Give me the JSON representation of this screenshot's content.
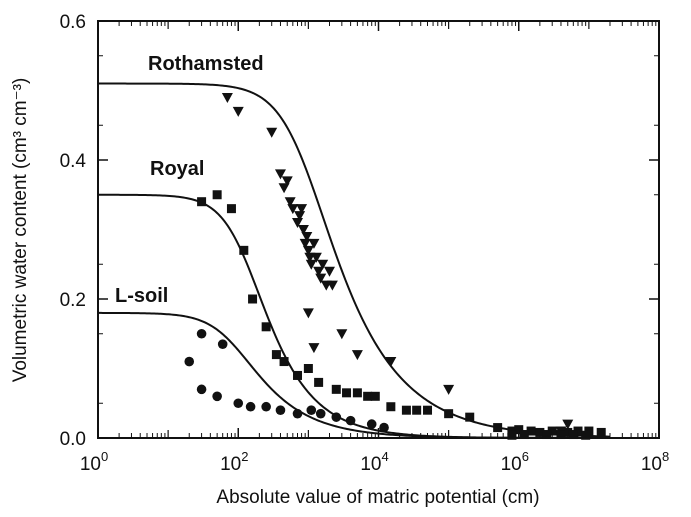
{
  "chart_data": {
    "type": "scatter",
    "title": "",
    "xlabel": "Absolute value of matric potential (cm)",
    "ylabel": "Volumetric water content (cm³ cm⁻³)",
    "xscale": "log",
    "xlim": [
      1,
      100000000
    ],
    "ylim": [
      0,
      0.6
    ],
    "x_ticks": [
      1,
      100,
      10000,
      1000000,
      100000000
    ],
    "x_tick_labels": [
      {
        "base": "10",
        "exp": "0"
      },
      {
        "base": "10",
        "exp": "2"
      },
      {
        "base": "10",
        "exp": "4"
      },
      {
        "base": "10",
        "exp": "6"
      },
      {
        "base": "10",
        "exp": "8"
      }
    ],
    "y_ticks": [
      0,
      0.2,
      0.4,
      0.6
    ],
    "y_tick_labels": [
      "0.0",
      "0.2",
      "0.4",
      "0.6"
    ],
    "grid": false,
    "series": [
      {
        "name": "Rothamsted",
        "marker": "triangle-down",
        "fit": {
          "theta_r": 0.0,
          "theta_s": 0.51,
          "alpha": 0.0012,
          "n": 1.55
        },
        "points": [
          [
            70,
            0.49
          ],
          [
            100,
            0.47
          ],
          [
            300,
            0.44
          ],
          [
            400,
            0.38
          ],
          [
            450,
            0.36
          ],
          [
            500,
            0.37
          ],
          [
            550,
            0.34
          ],
          [
            600,
            0.33
          ],
          [
            700,
            0.31
          ],
          [
            750,
            0.32
          ],
          [
            800,
            0.33
          ],
          [
            850,
            0.3
          ],
          [
            900,
            0.28
          ],
          [
            950,
            0.29
          ],
          [
            1000,
            0.27
          ],
          [
            1050,
            0.26
          ],
          [
            1100,
            0.25
          ],
          [
            1200,
            0.28
          ],
          [
            1300,
            0.26
          ],
          [
            1400,
            0.24
          ],
          [
            1500,
            0.23
          ],
          [
            1600,
            0.25
          ],
          [
            1800,
            0.22
          ],
          [
            2000,
            0.24
          ],
          [
            2200,
            0.22
          ],
          [
            1000,
            0.18
          ],
          [
            1200,
            0.13
          ],
          [
            3000,
            0.15
          ],
          [
            5000,
            0.12
          ],
          [
            15000,
            0.11
          ],
          [
            100000,
            0.07
          ],
          [
            4000000,
            0.01
          ],
          [
            5000000,
            0.02
          ]
        ]
      },
      {
        "name": "Royal",
        "marker": "square",
        "fit": {
          "theta_r": 0.0,
          "theta_s": 0.35,
          "alpha": 0.008,
          "n": 1.8
        },
        "points": [
          [
            30,
            0.34
          ],
          [
            50,
            0.35
          ],
          [
            80,
            0.33
          ],
          [
            120,
            0.27
          ],
          [
            160,
            0.2
          ],
          [
            250,
            0.16
          ],
          [
            350,
            0.12
          ],
          [
            450,
            0.11
          ],
          [
            700,
            0.09
          ],
          [
            1000,
            0.1
          ],
          [
            1400,
            0.08
          ],
          [
            2500,
            0.07
          ],
          [
            3500,
            0.065
          ],
          [
            5000,
            0.065
          ],
          [
            7000,
            0.06
          ],
          [
            9000,
            0.06
          ],
          [
            15000,
            0.045
          ],
          [
            25000,
            0.04
          ],
          [
            35000,
            0.04
          ],
          [
            50000,
            0.04
          ],
          [
            100000,
            0.035
          ],
          [
            200000,
            0.03
          ],
          [
            500000,
            0.015
          ],
          [
            800000,
            0.01
          ],
          [
            1000000,
            0.012
          ],
          [
            1500000,
            0.01
          ],
          [
            2000000,
            0.008
          ],
          [
            3000000,
            0.01
          ],
          [
            5000000,
            0.008
          ],
          [
            7000000,
            0.01
          ],
          [
            10000000,
            0.01
          ],
          [
            15000000,
            0.008
          ],
          [
            4000000,
            0.005
          ],
          [
            2500000,
            0.005
          ],
          [
            6000000,
            0.005
          ],
          [
            1200000,
            0.005
          ],
          [
            800000,
            0.004
          ],
          [
            9000000,
            0.004
          ]
        ]
      },
      {
        "name": "L-soil",
        "marker": "circle",
        "fit": {
          "theta_r": 0.0,
          "theta_s": 0.18,
          "alpha": 0.012,
          "n": 1.7
        },
        "points": [
          [
            30,
            0.15
          ],
          [
            60,
            0.135
          ],
          [
            20,
            0.11
          ],
          [
            30,
            0.07
          ],
          [
            50,
            0.06
          ],
          [
            100,
            0.05
          ],
          [
            150,
            0.045
          ],
          [
            250,
            0.045
          ],
          [
            400,
            0.04
          ],
          [
            700,
            0.035
          ],
          [
            1100,
            0.04
          ],
          [
            1500,
            0.035
          ],
          [
            2500,
            0.03
          ],
          [
            4000,
            0.025
          ],
          [
            8000,
            0.02
          ],
          [
            12000,
            0.015
          ]
        ]
      }
    ],
    "annotations": [
      "Rothamsted",
      "Royal",
      "L-soil"
    ]
  }
}
